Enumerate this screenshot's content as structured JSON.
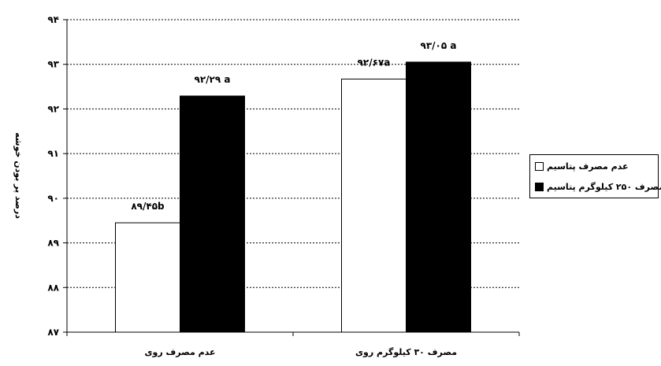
{
  "chart_data": {
    "type": "bar",
    "ylabel": "درصد پر بودن خوشه",
    "ylim": [
      87,
      94
    ],
    "yticks": [
      "۸۷",
      "۸۸",
      "۸۹",
      "۹۰",
      "۹۱",
      "۹۲",
      "۹۳",
      "۹۴"
    ],
    "categories": [
      "عدم مصرف روی",
      "مصرف ۳۰ کیلوگرم روی"
    ],
    "grid": true,
    "legend_position": "right",
    "series": [
      {
        "name": "عدم مصرف پتاسیم",
        "color": "#ffffff",
        "values": [
          89.45,
          92.67
        ],
        "labels": [
          "۸۹/۴۵b",
          "۹۲/۶۷a"
        ]
      },
      {
        "name": "مصرف ۲۵۰ کیلوگرم پتاسیم",
        "color": "#000000",
        "values": [
          92.29,
          93.05
        ],
        "labels": [
          "۹۲/۲۹ a",
          "۹۳/۰۵ a"
        ]
      }
    ]
  }
}
